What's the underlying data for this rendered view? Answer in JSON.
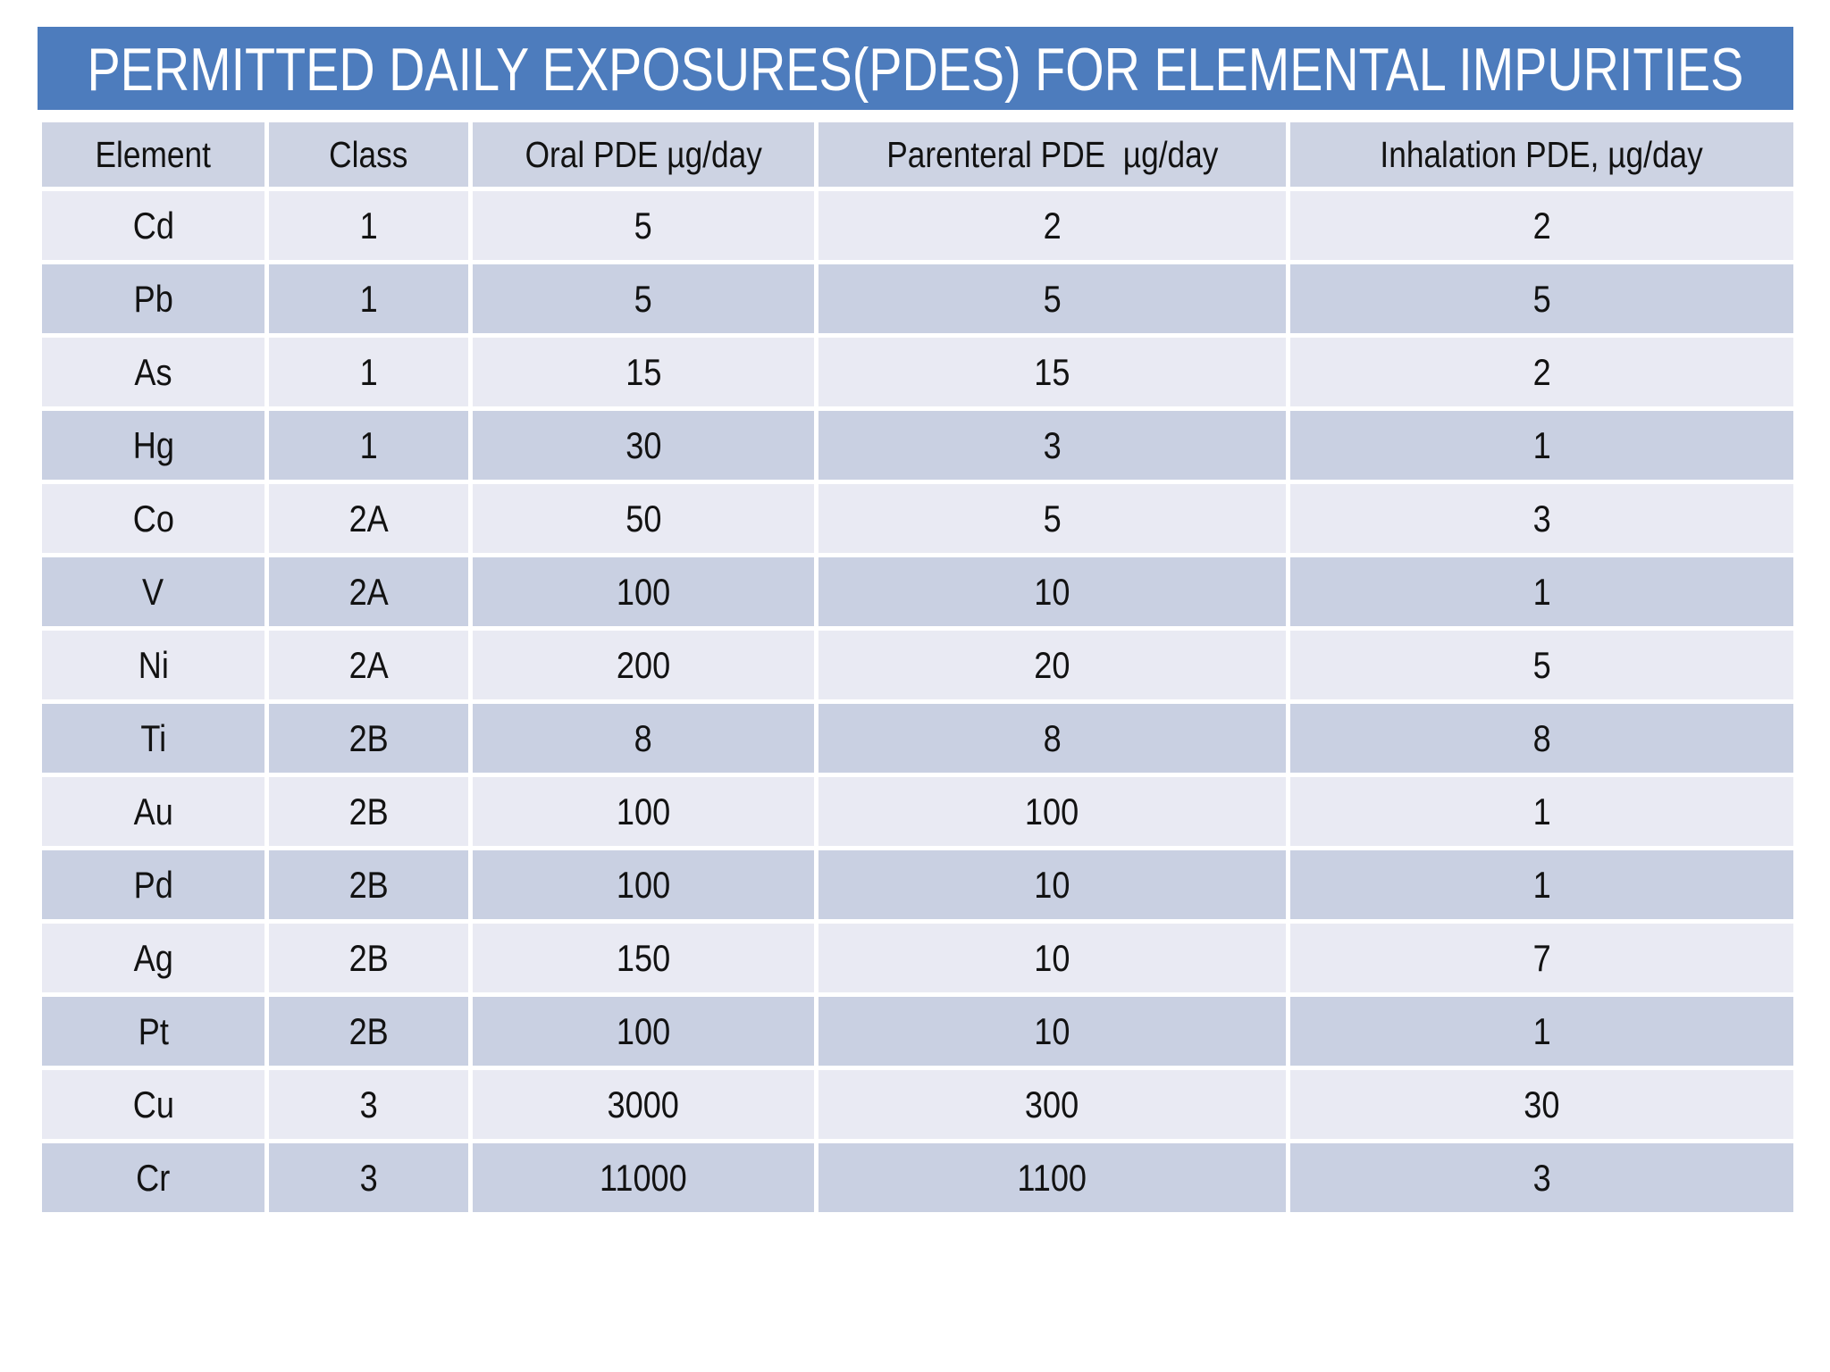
{
  "slide": {
    "title": "PERMITTED DAILY EXPOSURES(PDES) FOR ELEMENTAL IMPURITIES"
  },
  "chart_data": {
    "type": "table",
    "title": "PERMITTED DAILY EXPOSURES(PDES) FOR ELEMENTAL IMPURITIES",
    "columns": [
      "Element",
      "Class",
      "Oral PDE µg/day",
      "Parenteral PDE  µg/day",
      "Inhalation PDE, µg/day"
    ],
    "rows": [
      [
        "Cd",
        "1",
        "5",
        "2",
        "2"
      ],
      [
        "Pb",
        "1",
        "5",
        "5",
        "5"
      ],
      [
        "As",
        "1",
        "15",
        "15",
        "2"
      ],
      [
        "Hg",
        "1",
        "30",
        "3",
        "1"
      ],
      [
        "Co",
        "2A",
        "50",
        "5",
        "3"
      ],
      [
        "V",
        "2A",
        "100",
        "10",
        "1"
      ],
      [
        "Ni",
        "2A",
        "200",
        "20",
        "5"
      ],
      [
        "Ti",
        "2B",
        "8",
        "8",
        "8"
      ],
      [
        "Au",
        "2B",
        "100",
        "100",
        "1"
      ],
      [
        "Pd",
        "2B",
        "100",
        "10",
        "1"
      ],
      [
        "Ag",
        "2B",
        "150",
        "10",
        "7"
      ],
      [
        "Pt",
        "2B",
        "100",
        "10",
        "1"
      ],
      [
        "Cu",
        "3",
        "3000",
        "300",
        "30"
      ],
      [
        "Cr",
        "3",
        "11000",
        "1100",
        "3"
      ]
    ]
  },
  "colors": {
    "accent": "#4d7cbd",
    "title-text": "#ffffff",
    "header-bg": "#cdd3e3",
    "band-light": "#e9eaf3",
    "band-dark": "#c9d0e2",
    "cell-text": "#121212"
  }
}
